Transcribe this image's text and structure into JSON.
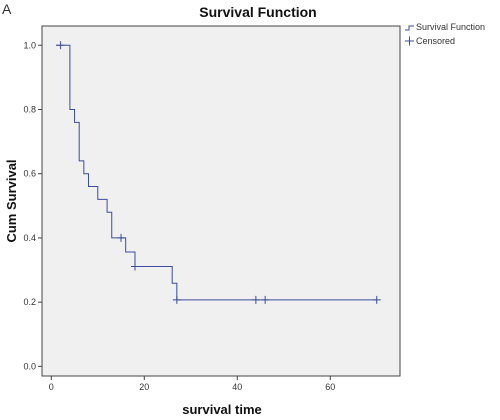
{
  "panel_letter": "A",
  "chart_data": {
    "type": "line",
    "title": "Survival Function",
    "xlabel": "survival time",
    "ylabel": "Cum Survival",
    "xlim": [
      -2,
      75
    ],
    "ylim": [
      -0.03,
      1.06
    ],
    "x_ticks": [
      0,
      20,
      40,
      60
    ],
    "y_ticks": [
      0.0,
      0.2,
      0.4,
      0.6,
      0.8,
      1.0
    ],
    "y_tick_labels": [
      "0.0",
      "0.2",
      "0.4",
      "0.6",
      "0.8",
      "1.0"
    ],
    "grid": false,
    "legend_position": "top-right",
    "colors": {
      "line": "#3a4d9a",
      "plot_bg": "#f0f0f0"
    },
    "series": [
      {
        "name": "Survival Function",
        "style": "step",
        "points": [
          [
            1,
            1.0
          ],
          [
            4,
            0.8
          ],
          [
            5,
            0.76
          ],
          [
            6,
            0.64
          ],
          [
            7,
            0.6
          ],
          [
            8,
            0.56
          ],
          [
            10,
            0.52
          ],
          [
            12,
            0.48
          ],
          [
            13,
            0.4
          ],
          [
            16,
            0.356
          ],
          [
            18,
            0.311
          ],
          [
            26,
            0.259
          ],
          [
            27,
            0.207
          ],
          [
            70,
            0.207
          ]
        ]
      },
      {
        "name": "Censored",
        "style": "marker",
        "points": [
          [
            2,
            1.0
          ],
          [
            15,
            0.4
          ],
          [
            18,
            0.311
          ],
          [
            27,
            0.207
          ],
          [
            44,
            0.207
          ],
          [
            46,
            0.207
          ],
          [
            70,
            0.207
          ]
        ]
      }
    ]
  }
}
